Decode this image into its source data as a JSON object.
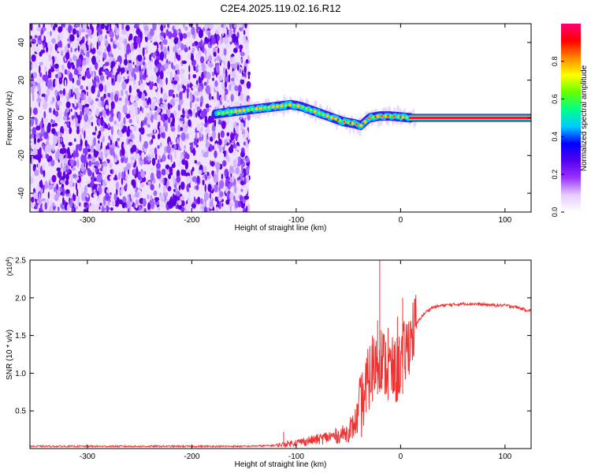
{
  "title": "C2E4.2025.119.02.16.R12",
  "chart_data": [
    {
      "type": "heatmap",
      "xlabel": "Height of straight line (km)",
      "ylabel": "Frequency (Hz)",
      "xlim": [
        -355,
        125
      ],
      "ylim": [
        -50,
        50
      ],
      "xticks": [
        -300,
        -200,
        -100,
        0,
        100
      ],
      "yticks": [
        -40,
        -20,
        0,
        20,
        40
      ],
      "noise_region": {
        "x": [
          -355,
          -145
        ],
        "y": [
          -50,
          50
        ]
      },
      "signal_track": [
        {
          "x": -178,
          "y": 2
        },
        {
          "x": -165,
          "y": 3
        },
        {
          "x": -150,
          "y": 4
        },
        {
          "x": -135,
          "y": 5
        },
        {
          "x": -120,
          "y": 6
        },
        {
          "x": -105,
          "y": 7
        },
        {
          "x": -95,
          "y": 6
        },
        {
          "x": -85,
          "y": 4
        },
        {
          "x": -75,
          "y": 2
        },
        {
          "x": -65,
          "y": 0
        },
        {
          "x": -55,
          "y": -2
        },
        {
          "x": -45,
          "y": -3
        },
        {
          "x": -38,
          "y": -4
        },
        {
          "x": -30,
          "y": 0
        },
        {
          "x": -20,
          "y": 1
        },
        {
          "x": -10,
          "y": 1
        },
        {
          "x": 0,
          "y": 0.5
        },
        {
          "x": 10,
          "y": 0
        },
        {
          "x": 125,
          "y": 0
        }
      ],
      "colorbar": {
        "label": "Normalized spectral amplitude",
        "ticks": [
          0.0,
          0.2,
          0.4,
          0.6,
          0.8
        ],
        "tick_labels": [
          "0.0",
          "0.2",
          "0.4",
          "0.6",
          "0.8"
        ],
        "range": [
          0,
          1
        ],
        "colors": [
          "#ffffff",
          "#e6ccff",
          "#9933ff",
          "#5500ee",
          "#0000ff",
          "#00ccff",
          "#00ff88",
          "#66ff00",
          "#ffff00",
          "#ff8800",
          "#ff0000",
          "#ff0077"
        ]
      }
    },
    {
      "type": "line",
      "xlabel": "Height of straight line (km)",
      "ylabel": "SNR (10 * v/v)",
      "multiplier": "(x10",
      "multiplier_exp": "4",
      "multiplier_close": ")",
      "xlim": [
        -355,
        125
      ],
      "ylim": [
        0,
        2.5
      ],
      "xticks": [
        -300,
        -200,
        -100,
        0,
        100
      ],
      "yticks": [
        0.5,
        1.0,
        1.5,
        2.0,
        2.5
      ],
      "ytick_labels": [
        "0.5",
        "1.0",
        "1.5",
        "2.0",
        "2.5"
      ],
      "color": "#ee3333",
      "series": [
        {
          "x": [
            -355,
            -250,
            -150,
            -120,
            -110,
            -100,
            -90,
            -80,
            -70,
            -60,
            -50,
            -45,
            -40,
            -35,
            -30,
            -25,
            -22,
            -20,
            -18,
            -15,
            -10,
            -5,
            0,
            5,
            10,
            15,
            20,
            25,
            30,
            40,
            50,
            60,
            70,
            80,
            90,
            100,
            110,
            115,
            120,
            125
          ],
          "y": [
            0.03,
            0.03,
            0.03,
            0.04,
            0.06,
            0.08,
            0.1,
            0.12,
            0.15,
            0.17,
            0.22,
            0.3,
            0.45,
            0.7,
            0.95,
            1.1,
            1.2,
            1.25,
            1.2,
            1.1,
            1.05,
            1.0,
            1.15,
            1.3,
            1.5,
            1.65,
            1.75,
            1.82,
            1.87,
            1.9,
            1.91,
            1.92,
            1.92,
            1.91,
            1.9,
            1.9,
            1.88,
            1.86,
            1.84,
            1.83
          ],
          "spikes": [
            {
              "x": -112,
              "y": 0.22
            },
            {
              "x": -48,
              "y": 0.42
            },
            {
              "x": -33,
              "y": 1.1
            },
            {
              "x": -27,
              "y": 1.5
            },
            {
              "x": -22,
              "y": 1.7
            },
            {
              "x": -20,
              "y": 2.5
            },
            {
              "x": -12,
              "y": 1.6
            },
            {
              "x": -3,
              "y": 1.75
            },
            {
              "x": 2,
              "y": 2.0
            }
          ]
        }
      ]
    }
  ]
}
